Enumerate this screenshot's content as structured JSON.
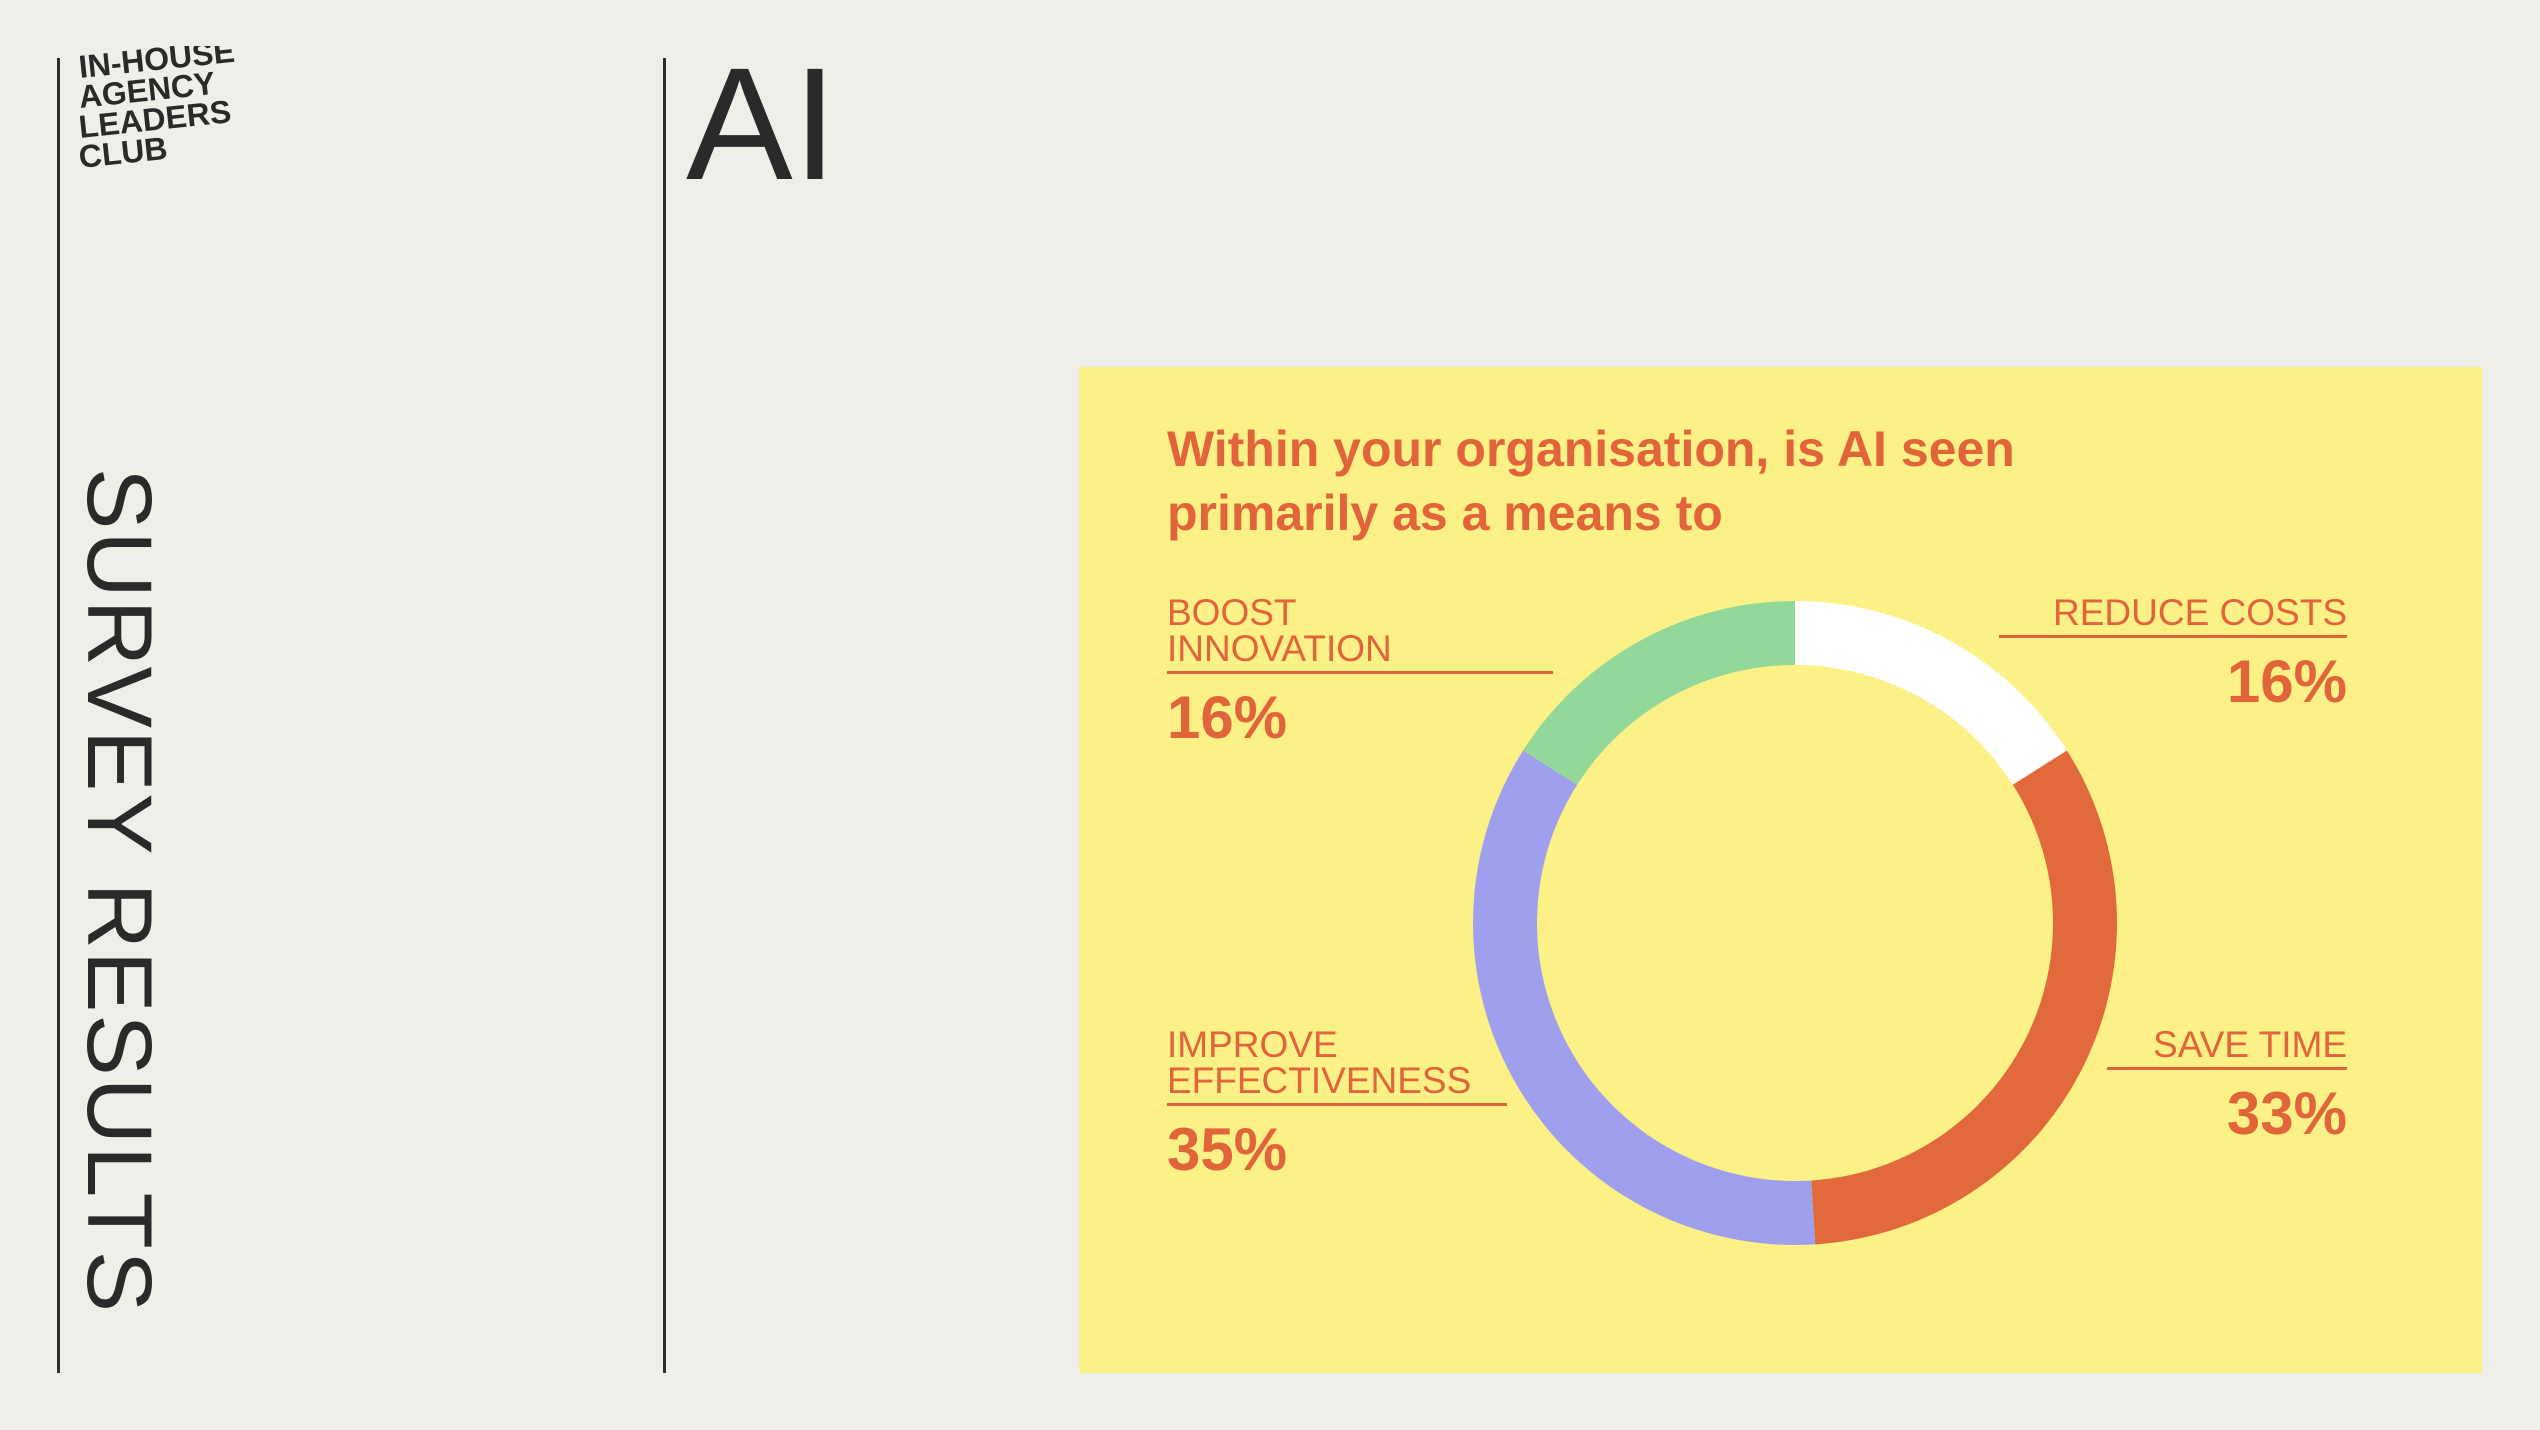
{
  "logo": {
    "lines": [
      "IN-HOUSE",
      "AGENCY",
      "LEADERS",
      "CLUB"
    ]
  },
  "sidebar": {
    "heading": "SURVEY RESULTS"
  },
  "section": {
    "title": "AI"
  },
  "colors": {
    "background": "#efeee9",
    "card": "#fbf186",
    "accent": "#e2643a",
    "reduce_costs": "#ffffff",
    "save_time": "#e2693b",
    "improve_effectiveness": "#9f9fee",
    "boost_innovation": "#93d89b"
  },
  "chart_data": {
    "type": "pie",
    "variant": "donut",
    "title": "Within your organisation, is AI seen primarily as a means to",
    "start_angle_deg": 0,
    "direction": "clockwise",
    "slices": [
      {
        "label": "REDUCE COSTS",
        "value": 16,
        "display": "16%",
        "color": "#ffffff"
      },
      {
        "label": "SAVE TIME",
        "value": 33,
        "display": "33%",
        "color": "#e2693b"
      },
      {
        "label": "IMPROVE EFFECTIVENESS",
        "value": 35,
        "display": "35%",
        "color": "#9f9fee"
      },
      {
        "label": "BOOST INNOVATION",
        "value": 16,
        "display": "16%",
        "color": "#93d89b"
      }
    ]
  },
  "labels": {
    "boost": {
      "text": "BOOST\nINNOVATION",
      "value": "16%"
    },
    "reduce": {
      "text": "REDUCE COSTS",
      "value": "16%"
    },
    "improve": {
      "text": "IMPROVE\nEFFECTIVENESS",
      "value": "35%"
    },
    "save": {
      "text": "SAVE TIME",
      "value": "33%"
    }
  }
}
